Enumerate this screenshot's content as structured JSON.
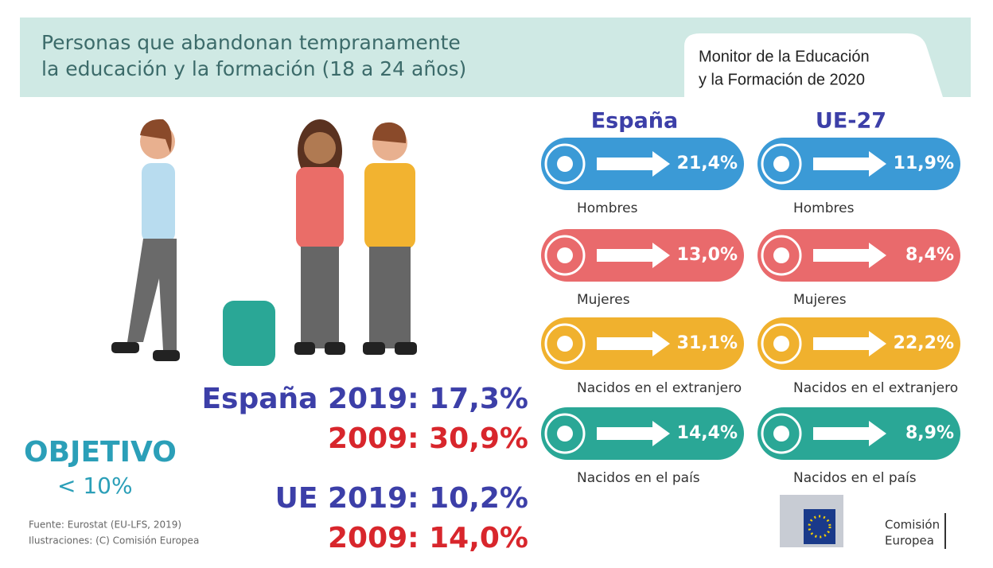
{
  "header": {
    "title_line1": "Personas que abandonan tempranamente",
    "title_line2": "la educación y la formación (18 a 24 años)",
    "monitor_line1": "Monitor de la Educación",
    "monitor_line2": "y la Formación de 2020"
  },
  "columns": [
    "España",
    "UE-27"
  ],
  "rows": [
    {
      "label": "Hombres",
      "values": [
        "21,4%",
        "11,9%"
      ],
      "color": "#3b9ad6"
    },
    {
      "label": "Mujeres",
      "values": [
        "13,0%",
        "8,4%"
      ],
      "color": "#e96a6c"
    },
    {
      "label": "Nacidos en el extranjero",
      "values": [
        "31,1%",
        "22,2%"
      ],
      "color": "#f0b12e"
    },
    {
      "label": "Nacidos en el país",
      "values": [
        "14,4%",
        "8,9%"
      ],
      "color": "#2aa796"
    }
  ],
  "summary": {
    "spain_2019": "España 2019: 17,3%",
    "spain_2009": "2009: 30,9%",
    "eu_2019": "UE 2019: 10,2%",
    "eu_2009": "2009: 14,0%"
  },
  "target": {
    "title": "OBJETIVO",
    "value": "< 10%"
  },
  "source": [
    "Fuente: Eurostat (EU-LFS, 2019)",
    "Ilustraciones: (C) Comisión Europea"
  ],
  "logo": [
    "Comisión",
    "Europea"
  ]
}
